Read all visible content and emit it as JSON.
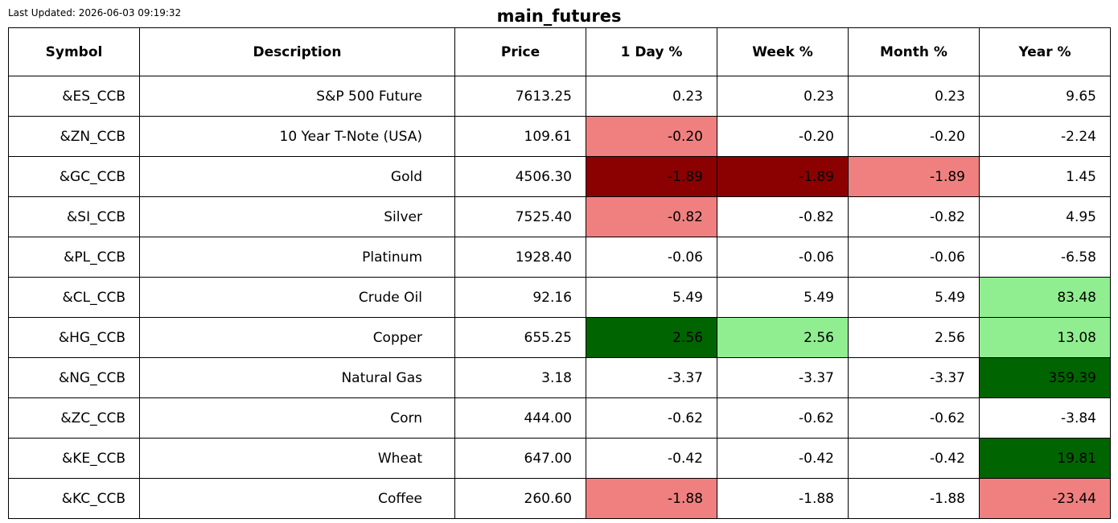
{
  "last_updated": "Last Updated: 2026-06-03 09:19:32",
  "title": "main_futures",
  "colors": {
    "strong_negative": "#8b0000",
    "negative": "#f08080",
    "neutral": "#ffffff",
    "positive": "#90ee90",
    "strong_positive": "#006400",
    "border": "#000000"
  },
  "chart_data": {
    "type": "table",
    "title": "main_futures",
    "columns": [
      "Symbol",
      "Description",
      "Price",
      "1 Day %",
      "Week %",
      "Month %",
      "Year %"
    ],
    "rows": [
      {
        "symbol": "&ES_CCB",
        "description": "S&P 500 Future",
        "price": "7613.25",
        "day": "0.23",
        "week": "0.23",
        "month": "0.23",
        "year": "9.65",
        "fills": {
          "day": "neutral",
          "week": "neutral",
          "month": "neutral",
          "year": "neutral"
        }
      },
      {
        "symbol": "&ZN_CCB",
        "description": "10 Year T-Note (USA)",
        "price": "109.61",
        "day": "-0.20",
        "week": "-0.20",
        "month": "-0.20",
        "year": "-2.24",
        "fills": {
          "day": "negative",
          "week": "neutral",
          "month": "neutral",
          "year": "neutral"
        }
      },
      {
        "symbol": "&GC_CCB",
        "description": "Gold",
        "price": "4506.30",
        "day": "-1.89",
        "week": "-1.89",
        "month": "-1.89",
        "year": "1.45",
        "fills": {
          "day": "strong_negative",
          "week": "strong_negative",
          "month": "negative",
          "year": "neutral"
        }
      },
      {
        "symbol": "&SI_CCB",
        "description": "Silver",
        "price": "7525.40",
        "day": "-0.82",
        "week": "-0.82",
        "month": "-0.82",
        "year": "4.95",
        "fills": {
          "day": "negative",
          "week": "neutral",
          "month": "neutral",
          "year": "neutral"
        }
      },
      {
        "symbol": "&PL_CCB",
        "description": "Platinum",
        "price": "1928.40",
        "day": "-0.06",
        "week": "-0.06",
        "month": "-0.06",
        "year": "-6.58",
        "fills": {
          "day": "neutral",
          "week": "neutral",
          "month": "neutral",
          "year": "neutral"
        }
      },
      {
        "symbol": "&CL_CCB",
        "description": "Crude Oil",
        "price": "92.16",
        "day": "5.49",
        "week": "5.49",
        "month": "5.49",
        "year": "83.48",
        "fills": {
          "day": "neutral",
          "week": "neutral",
          "month": "neutral",
          "year": "positive"
        }
      },
      {
        "symbol": "&HG_CCB",
        "description": "Copper",
        "price": "655.25",
        "day": "2.56",
        "week": "2.56",
        "month": "2.56",
        "year": "13.08",
        "fills": {
          "day": "strong_positive",
          "week": "positive",
          "month": "neutral",
          "year": "positive"
        }
      },
      {
        "symbol": "&NG_CCB",
        "description": "Natural Gas",
        "price": "3.18",
        "day": "-3.37",
        "week": "-3.37",
        "month": "-3.37",
        "year": "359.39",
        "fills": {
          "day": "neutral",
          "week": "neutral",
          "month": "neutral",
          "year": "strong_positive"
        }
      },
      {
        "symbol": "&ZC_CCB",
        "description": "Corn",
        "price": "444.00",
        "day": "-0.62",
        "week": "-0.62",
        "month": "-0.62",
        "year": "-3.84",
        "fills": {
          "day": "neutral",
          "week": "neutral",
          "month": "neutral",
          "year": "neutral"
        }
      },
      {
        "symbol": "&KE_CCB",
        "description": "Wheat",
        "price": "647.00",
        "day": "-0.42",
        "week": "-0.42",
        "month": "-0.42",
        "year": "19.81",
        "fills": {
          "day": "neutral",
          "week": "neutral",
          "month": "neutral",
          "year": "strong_positive"
        }
      },
      {
        "symbol": "&KC_CCB",
        "description": "Coffee",
        "price": "260.60",
        "day": "-1.88",
        "week": "-1.88",
        "month": "-1.88",
        "year": "-23.44",
        "fills": {
          "day": "negative",
          "week": "neutral",
          "month": "neutral",
          "year": "negative"
        }
      }
    ]
  }
}
